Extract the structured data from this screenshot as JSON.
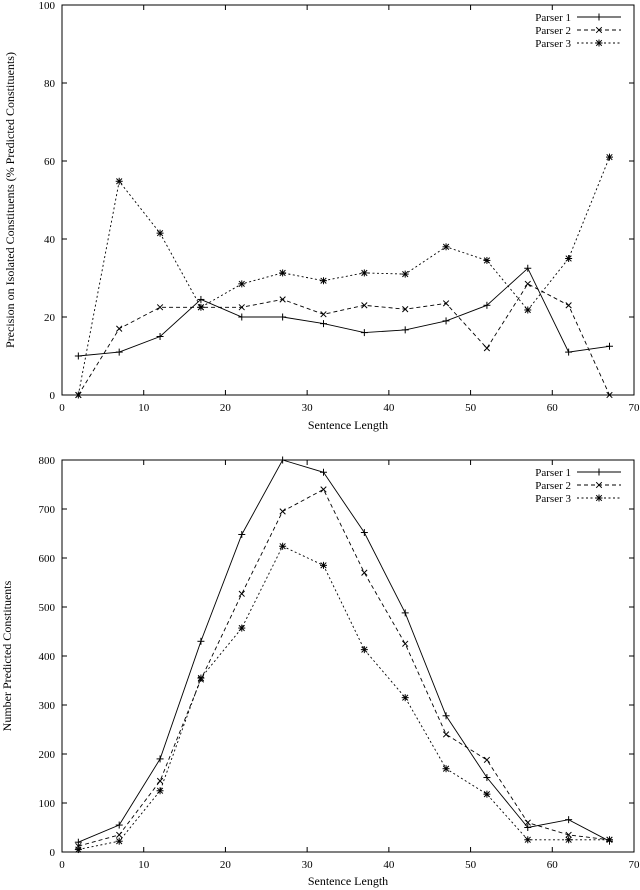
{
  "chart_data": [
    {
      "type": "line",
      "title": "",
      "xlabel": "Sentence Length",
      "ylabel": "Precision on Isolated Constituents (% Predicted Constituents)",
      "xlim": [
        0,
        70
      ],
      "ylim": [
        0,
        100
      ],
      "xticks": [
        0,
        10,
        20,
        30,
        40,
        50,
        60,
        70
      ],
      "yticks": [
        0,
        20,
        40,
        60,
        80,
        100
      ],
      "grid": false,
      "legend_position": "top-right",
      "x": [
        2,
        7,
        12,
        17,
        22,
        27,
        32,
        37,
        42,
        47,
        52,
        57,
        62,
        67
      ],
      "series": [
        {
          "name": "Parser 1",
          "dash": "solid",
          "marker": "plus",
          "values": [
            10,
            11,
            15,
            24.5,
            20,
            20,
            18.3,
            16,
            16.7,
            19,
            23,
            32.5,
            11,
            12.5
          ]
        },
        {
          "name": "Parser 2",
          "dash": "dashed",
          "marker": "cross",
          "values": [
            0,
            17,
            22.5,
            22.5,
            22.5,
            24.5,
            20.7,
            23,
            22,
            23.5,
            12,
            28.5,
            23,
            0
          ]
        },
        {
          "name": "Parser 3",
          "dash": "dotted",
          "marker": "star",
          "values": [
            0,
            54.8,
            41.5,
            22.5,
            28.5,
            31.3,
            29.3,
            31.3,
            31,
            38,
            34.5,
            21.8,
            35,
            61
          ]
        }
      ]
    },
    {
      "type": "line",
      "title": "",
      "xlabel": "Sentence Length",
      "ylabel": "Number Predicted Constituents",
      "xlim": [
        0,
        70
      ],
      "ylim": [
        0,
        800
      ],
      "xticks": [
        0,
        10,
        20,
        30,
        40,
        50,
        60,
        70
      ],
      "yticks": [
        0,
        100,
        200,
        300,
        400,
        500,
        600,
        700,
        800
      ],
      "grid": false,
      "legend_position": "top-right",
      "x": [
        2,
        7,
        12,
        17,
        22,
        27,
        32,
        37,
        42,
        47,
        52,
        57,
        62,
        67
      ],
      "series": [
        {
          "name": "Parser 1",
          "dash": "solid",
          "marker": "plus",
          "values": [
            20,
            55,
            190,
            430,
            648,
            800,
            775,
            652,
            488,
            278,
            152,
            50,
            66,
            22
          ]
        },
        {
          "name": "Parser 2",
          "dash": "dashed",
          "marker": "cross",
          "values": [
            12,
            35,
            145,
            352,
            527,
            695,
            740,
            570,
            425,
            240,
            188,
            60,
            35,
            25
          ]
        },
        {
          "name": "Parser 3",
          "dash": "dotted",
          "marker": "star",
          "values": [
            5,
            22,
            125,
            355,
            457,
            624,
            585,
            413,
            315,
            170,
            118,
            25,
            25,
            25
          ]
        }
      ]
    }
  ]
}
